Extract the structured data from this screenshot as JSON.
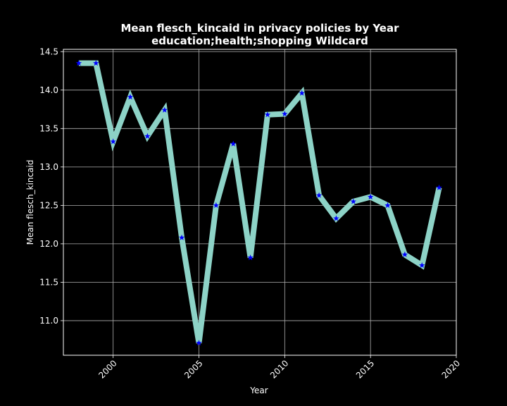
{
  "chart_data": {
    "type": "line",
    "title": "Mean flesch_kincaid in privacy policies by Year",
    "subtitle": "education;health;shopping Wildcard",
    "xlabel": "Year",
    "ylabel": "Mean flesch_kincaid",
    "xlim": [
      1997.1,
      2020.0
    ],
    "ylim": [
      10.55,
      14.53
    ],
    "x_ticks": [
      "2000",
      "2005",
      "2010",
      "2015",
      "2020"
    ],
    "y_ticks": [
      "11.0",
      "11.5",
      "12.0",
      "12.5",
      "13.0",
      "13.5",
      "14.0",
      "14.5"
    ],
    "grid": true,
    "colors": {
      "line": "#8dd3c7",
      "marker": "#0000ff",
      "background": "#000000",
      "grid": "#b0b0b0"
    },
    "series": [
      {
        "x": [
          1998,
          1999,
          2000,
          2001,
          2002,
          2003,
          2004,
          2005,
          2006,
          2007,
          2008,
          2009,
          2010,
          2011,
          2012,
          2013,
          2014,
          2015,
          2016,
          2017,
          2018,
          2019
        ],
        "values": [
          14.35,
          14.35,
          13.33,
          13.91,
          13.4,
          13.74,
          12.08,
          10.71,
          12.5,
          13.3,
          11.82,
          13.68,
          13.69,
          13.96,
          12.63,
          12.33,
          12.55,
          12.61,
          12.5,
          11.86,
          11.72,
          12.73
        ]
      }
    ]
  }
}
